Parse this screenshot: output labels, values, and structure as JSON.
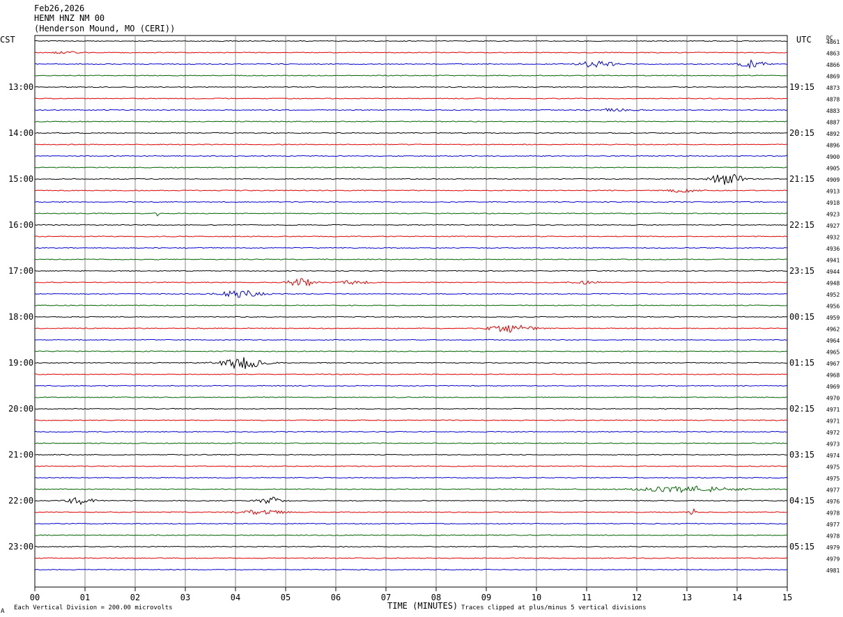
{
  "header": {
    "date": "Feb26,2026",
    "station": "HENM HNZ NM 00",
    "location": "(Henderson Mound, MO (CERI))"
  },
  "left_zone": "CST",
  "right_zone": "UTC",
  "dc_label": "DC",
  "footer": {
    "scale": "Each Vertical Division =  200.00 microvolts",
    "clip": "Traces clipped at plus/minus 5 vertical divisions",
    "corner_mark": "A"
  },
  "colors": {
    "black": "#000000",
    "red": "#e00000",
    "blue": "#0000d0",
    "green": "#006400",
    "grid": "#888888"
  },
  "chart_data": {
    "type": "line",
    "title": "",
    "xlabel": "TIME (MINUTES)",
    "ylabel": "",
    "xlim": [
      0,
      15
    ],
    "x_ticks": [
      "00",
      "01",
      "02",
      "03",
      "04",
      "05",
      "06",
      "07",
      "08",
      "09",
      "10",
      "11",
      "12",
      "13",
      "14",
      "15"
    ],
    "grid": true,
    "trace_color_cycle": [
      "black",
      "red",
      "blue",
      "green"
    ],
    "left_hour_labels": [
      {
        "row": 4,
        "label": "13:00"
      },
      {
        "row": 8,
        "label": "14:00"
      },
      {
        "row": 12,
        "label": "15:00"
      },
      {
        "row": 16,
        "label": "16:00"
      },
      {
        "row": 20,
        "label": "17:00"
      },
      {
        "row": 24,
        "label": "18:00"
      },
      {
        "row": 28,
        "label": "19:00"
      },
      {
        "row": 32,
        "label": "20:00"
      },
      {
        "row": 36,
        "label": "21:00"
      },
      {
        "row": 40,
        "label": "22:00"
      },
      {
        "row": 44,
        "label": "23:00"
      }
    ],
    "right_hour_labels": [
      {
        "row": 4,
        "label": "19:15"
      },
      {
        "row": 8,
        "label": "20:15"
      },
      {
        "row": 12,
        "label": "21:15"
      },
      {
        "row": 16,
        "label": "22:15"
      },
      {
        "row": 20,
        "label": "23:15"
      },
      {
        "row": 24,
        "label": "00:15"
      },
      {
        "row": 28,
        "label": "01:15"
      },
      {
        "row": 32,
        "label": "02:15"
      },
      {
        "row": 36,
        "label": "03:15"
      },
      {
        "row": 40,
        "label": "04:15"
      },
      {
        "row": 44,
        "label": "05:15"
      }
    ],
    "dc_values": [
      "4861",
      "4863",
      "4866",
      "4869",
      "4873",
      "4878",
      "4883",
      "4887",
      "4892",
      "4896",
      "4900",
      "4905",
      "4909",
      "4913",
      "4918",
      "4923",
      "4927",
      "4932",
      "4936",
      "4941",
      "4944",
      "4948",
      "4952",
      "4956",
      "4959",
      "4962",
      "4964",
      "4965",
      "4967",
      "4968",
      "4969",
      "4970",
      "4971",
      "4971",
      "4972",
      "4973",
      "4974",
      "4975",
      "4975",
      "4977",
      "4976",
      "4978",
      "4977",
      "4978",
      "4979",
      "4979",
      "4981"
    ],
    "events": [
      {
        "row": 2,
        "minute": 11.2,
        "amplitude": 2.2,
        "duration": 1.0
      },
      {
        "row": 2,
        "minute": 14.3,
        "amplitude": 1.8,
        "duration": 0.8
      },
      {
        "row": 1,
        "minute": 0.6,
        "amplitude": 0.6,
        "duration": 0.8
      },
      {
        "row": 6,
        "minute": 11.5,
        "amplitude": 0.6,
        "duration": 1.5
      },
      {
        "row": 12,
        "minute": 13.8,
        "amplitude": 2.8,
        "duration": 1.0
      },
      {
        "row": 13,
        "minute": 12.9,
        "amplitude": 0.9,
        "duration": 0.9
      },
      {
        "row": 15,
        "minute": 2.45,
        "amplitude": 3.2,
        "duration": 0.15
      },
      {
        "row": 21,
        "minute": 5.3,
        "amplitude": 2.2,
        "duration": 0.8
      },
      {
        "row": 21,
        "minute": 6.4,
        "amplitude": 1.3,
        "duration": 0.9
      },
      {
        "row": 21,
        "minute": 11.0,
        "amplitude": 0.8,
        "duration": 0.8
      },
      {
        "row": 22,
        "minute": 4.1,
        "amplitude": 1.6,
        "duration": 1.3
      },
      {
        "row": 25,
        "minute": 9.5,
        "amplitude": 1.8,
        "duration": 1.3
      },
      {
        "row": 28,
        "minute": 4.1,
        "amplitude": 3.0,
        "duration": 1.4
      },
      {
        "row": 39,
        "minute": 13.0,
        "amplitude": 1.4,
        "duration": 3.0
      },
      {
        "row": 40,
        "minute": 0.9,
        "amplitude": 1.8,
        "duration": 0.8
      },
      {
        "row": 40,
        "minute": 4.7,
        "amplitude": 1.6,
        "duration": 0.8
      },
      {
        "row": 41,
        "minute": 4.5,
        "amplitude": 1.0,
        "duration": 1.5
      },
      {
        "row": 41,
        "minute": 13.1,
        "amplitude": 2.4,
        "duration": 0.2
      }
    ]
  }
}
